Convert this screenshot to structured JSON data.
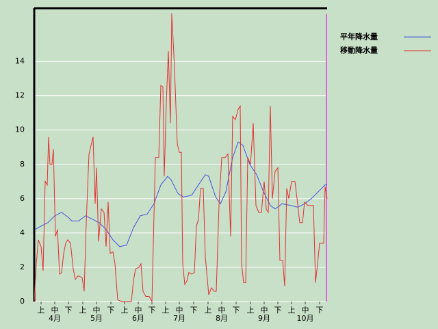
{
  "chart_data": {
    "type": "line",
    "xlim": [
      0,
      214
    ],
    "ylim": [
      0,
      17.1
    ],
    "yticks": [
      0,
      2,
      4,
      6,
      8,
      10,
      12,
      14
    ],
    "grid": true,
    "xticks": [
      {
        "value": 5,
        "label": "上"
      },
      {
        "value": 15,
        "label": "中"
      },
      {
        "value": 25,
        "label": "下"
      },
      {
        "value": 35.5,
        "label": "上"
      },
      {
        "value": 45.5,
        "label": "中"
      },
      {
        "value": 56,
        "label": "下"
      },
      {
        "value": 66,
        "label": "上"
      },
      {
        "value": 76,
        "label": "中"
      },
      {
        "value": 86,
        "label": "下"
      },
      {
        "value": 96,
        "label": "上"
      },
      {
        "value": 106,
        "label": "中"
      },
      {
        "value": 116.5,
        "label": "下"
      },
      {
        "value": 127,
        "label": "上"
      },
      {
        "value": 137,
        "label": "中"
      },
      {
        "value": 147.5,
        "label": "下"
      },
      {
        "value": 158,
        "label": "上"
      },
      {
        "value": 168,
        "label": "中"
      },
      {
        "value": 178,
        "label": "下"
      },
      {
        "value": 188,
        "label": "上"
      },
      {
        "value": 198,
        "label": "中"
      },
      {
        "value": 208.5,
        "label": "下"
      }
    ],
    "xgroups": [
      {
        "value": 15,
        "label": "4月"
      },
      {
        "value": 45.5,
        "label": "5月"
      },
      {
        "value": 76,
        "label": "6月"
      },
      {
        "value": 106,
        "label": "7月"
      },
      {
        "value": 137,
        "label": "8月"
      },
      {
        "value": 168,
        "label": "9月"
      },
      {
        "value": 198,
        "label": "10月"
      }
    ],
    "series": [
      {
        "name": "平年降水量",
        "color": "#4455dd",
        "x": [
          0.5,
          5,
          10,
          15,
          20,
          25,
          27.5,
          32.5,
          37.5,
          42.5,
          47.5,
          52.5,
          57.5,
          62.5,
          67.5,
          72.5,
          77.5,
          82.5,
          87.5,
          92.5,
          97.5,
          100,
          105,
          109,
          115,
          120,
          125,
          127.5,
          132.5,
          136,
          140,
          145,
          149,
          152.5,
          157.5,
          162.5,
          167.5,
          172.5,
          176,
          181,
          187.5,
          192.5,
          197.5,
          202.5,
          207.5,
          212.5,
          214
        ],
        "values": [
          4.2,
          4.4,
          4.6,
          5.0,
          5.2,
          4.9,
          4.7,
          4.7,
          5.0,
          4.8,
          4.6,
          4.2,
          3.6,
          3.2,
          3.3,
          4.3,
          5.0,
          5.1,
          5.7,
          6.8,
          7.3,
          7.1,
          6.3,
          6.1,
          6.2,
          6.8,
          7.4,
          7.3,
          6.1,
          5.7,
          6.4,
          8.4,
          9.3,
          9.1,
          8.0,
          7.4,
          6.4,
          5.6,
          5.4,
          5.7,
          5.6,
          5.5,
          5.7,
          6.0,
          6.4,
          6.8,
          6.8
        ]
      },
      {
        "name": "移動降水量",
        "color": "#e03030",
        "x": [
          0,
          1.5,
          3,
          5,
          6.5,
          8,
          9.5,
          10.5,
          11.5,
          13,
          14,
          15.5,
          17,
          18.5,
          20,
          21.5,
          23,
          24.5,
          26.5,
          28.5,
          30,
          32,
          35,
          36.5,
          38,
          40,
          43,
          44.5,
          45.5,
          47,
          49,
          51,
          52.5,
          54,
          55.5,
          57.5,
          59,
          61,
          64,
          71,
          72.5,
          74,
          76.5,
          78,
          79.5,
          81.5,
          84,
          86,
          88.5,
          91,
          92.5,
          94,
          95,
          96.5,
          98,
          99.5,
          100.5,
          102.5,
          104.5,
          106,
          107.5,
          108.5,
          110,
          111.5,
          113,
          115,
          117,
          118.5,
          120,
          121.5,
          123.5,
          125,
          127.5,
          129.5,
          131.5,
          133,
          135,
          137,
          139.5,
          141.5,
          143.5,
          145,
          147,
          149,
          150.5,
          151.5,
          153,
          154.5,
          156,
          158,
          160,
          162,
          164,
          166,
          168,
          169.5,
          171,
          172.5,
          174,
          176,
          178,
          179.5,
          181.5,
          183,
          184.5,
          186,
          188,
          190.5,
          192,
          194,
          196,
          197.5,
          200,
          202.5,
          204,
          205.5,
          207,
          208.5,
          211.5,
          212.5,
          214
        ],
        "values": [
          0,
          2.2,
          3.6,
          3.2,
          1.8,
          7.0,
          6.8,
          9.6,
          8.0,
          8.0,
          8.9,
          3.8,
          4.2,
          1.6,
          1.7,
          2.8,
          3.4,
          3.6,
          3.4,
          1.9,
          1.3,
          1.5,
          1.4,
          0.6,
          4.6,
          8.6,
          9.6,
          5.7,
          7.8,
          3.5,
          5.4,
          5.2,
          3.2,
          5.8,
          2.8,
          2.9,
          2.2,
          0.1,
          0,
          0,
          1.2,
          1.9,
          2.0,
          2.2,
          0.6,
          0.3,
          0.3,
          0,
          8.4,
          8.4,
          12.6,
          12.5,
          7.3,
          11.6,
          14.6,
          10.4,
          16.8,
          13.6,
          9.2,
          8.7,
          8.7,
          2.2,
          1.0,
          1.2,
          1.7,
          1.6,
          1.7,
          4.4,
          4.8,
          6.6,
          6.6,
          2.6,
          0.4,
          0.8,
          0.6,
          0.6,
          5.6,
          8.4,
          8.4,
          8.6,
          3.8,
          10.8,
          10.6,
          11.2,
          11.4,
          2.2,
          1.1,
          1.1,
          8.4,
          8.0,
          10.4,
          5.6,
          5.2,
          5.2,
          7.0,
          5.4,
          5.2,
          11.4,
          6.0,
          7.6,
          7.8,
          2.4,
          2.4,
          0.9,
          6.6,
          6.0,
          7.0,
          7.0,
          6.0,
          4.6,
          4.6,
          5.8,
          5.6,
          5.6,
          5.6,
          1.1,
          2.2,
          3.4,
          3.4,
          6.7,
          6.0
        ]
      }
    ]
  }
}
